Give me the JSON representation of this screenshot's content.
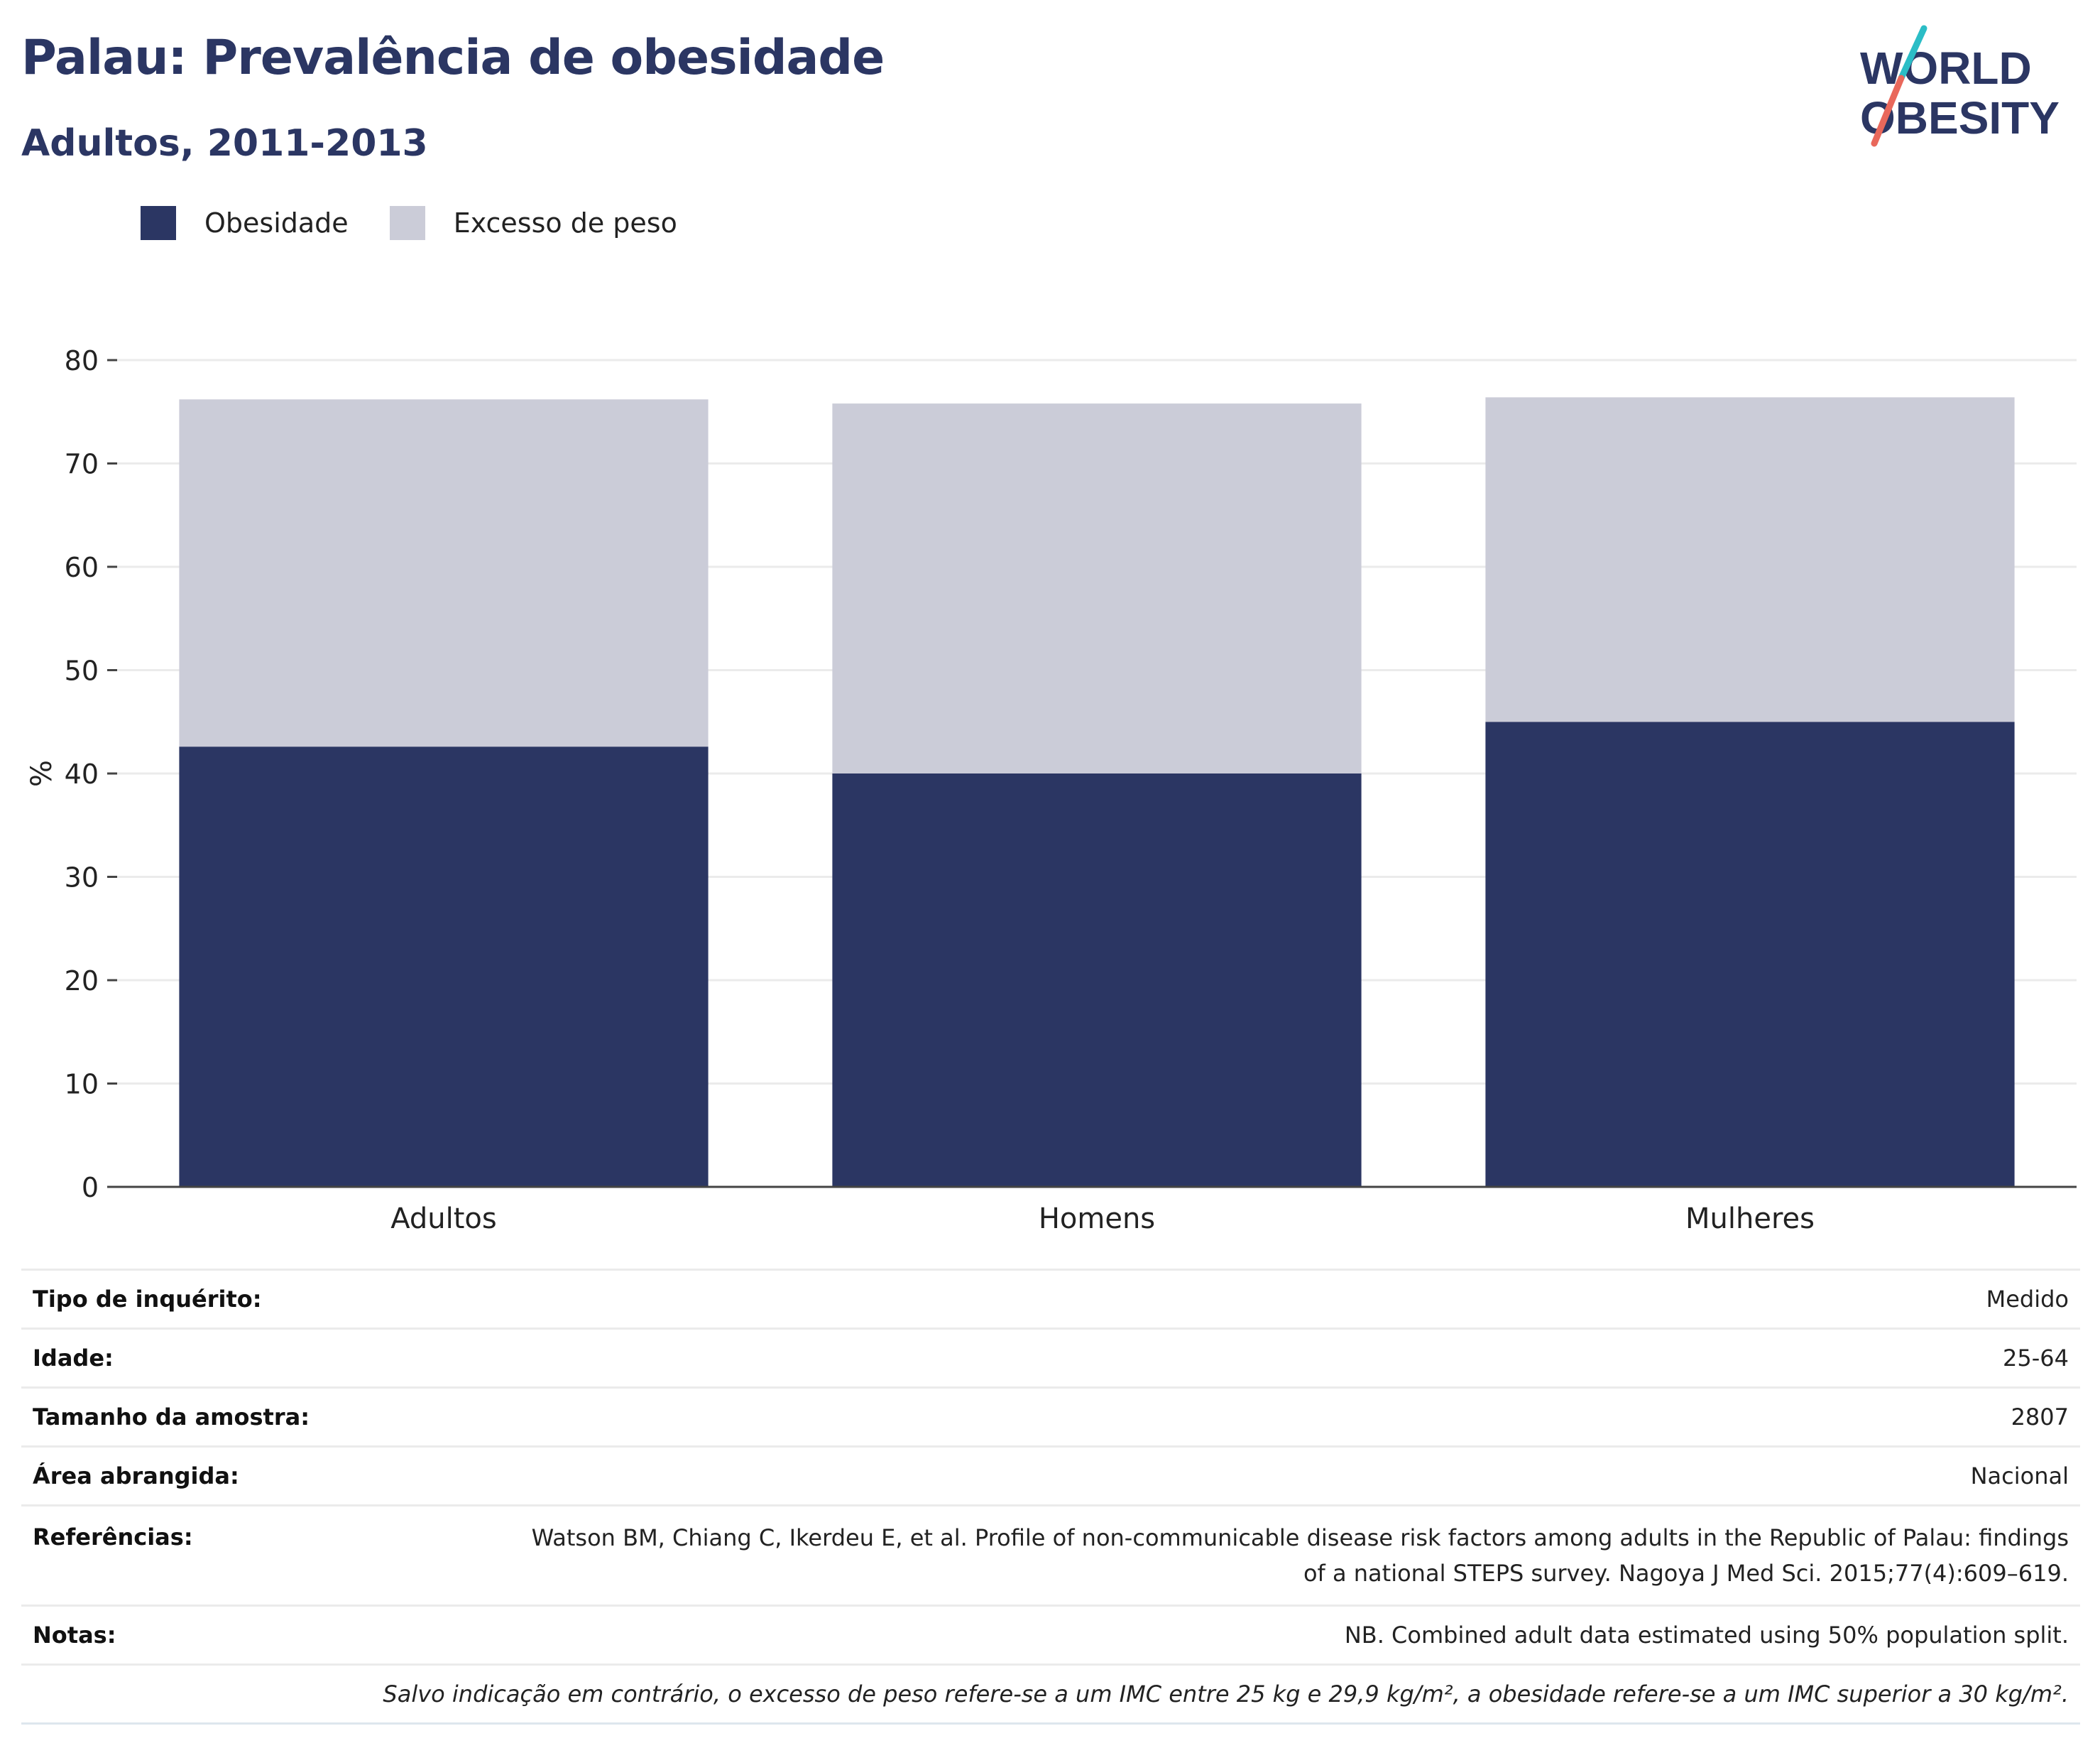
{
  "header": {
    "title": "Palau: Prevalência de obesidade",
    "subtitle": "Adultos, 2011-2013"
  },
  "logo": {
    "line1": "WORLD",
    "line2": "OBESITY"
  },
  "colors": {
    "obesity": "#2b3663",
    "overweight": "#cbccd8",
    "accent_teal": "#2bbdc6",
    "accent_coral": "#e9685b"
  },
  "chart_data": {
    "type": "bar",
    "stacked": true,
    "categories": [
      "Adultos",
      "Homens",
      "Mulheres"
    ],
    "series": [
      {
        "name": "Obesidade",
        "values": [
          42.6,
          40.0,
          45.0
        ],
        "color": "#2b3663"
      },
      {
        "name": "Excesso de peso",
        "values": [
          33.6,
          35.8,
          31.4
        ],
        "color": "#cbccd8"
      }
    ],
    "ylabel": "%",
    "ylim": [
      0,
      80
    ],
    "yticks": [
      0,
      10,
      20,
      30,
      40,
      50,
      60,
      70,
      80
    ],
    "grid": true,
    "legend_position": "top-left"
  },
  "info": {
    "rows": [
      {
        "label": "Tipo de inquérito:",
        "value": "Medido"
      },
      {
        "label": "Idade:",
        "value": "25-64"
      },
      {
        "label": "Tamanho da amostra:",
        "value": "2807"
      },
      {
        "label": "Área abrangida:",
        "value": "Nacional"
      },
      {
        "label": "Referências:",
        "value_line1": "Watson BM, Chiang C, Ikerdeu E, et al. Profile of non-communicable disease risk factors among adults in the Republic of Palau: findings",
        "value_line2": "of a national STEPS survey. Nagoya J Med Sci. 2015;77(4):609–619."
      },
      {
        "label": "Notas:",
        "value": "NB. Combined adult data estimated using 50% population split."
      }
    ],
    "footnote": "Salvo indicação em contrário, o excesso de peso refere-se a um IMC entre 25 kg e 29,9 kg/m², a obesidade refere-se a um IMC superior a 30 kg/m²."
  }
}
